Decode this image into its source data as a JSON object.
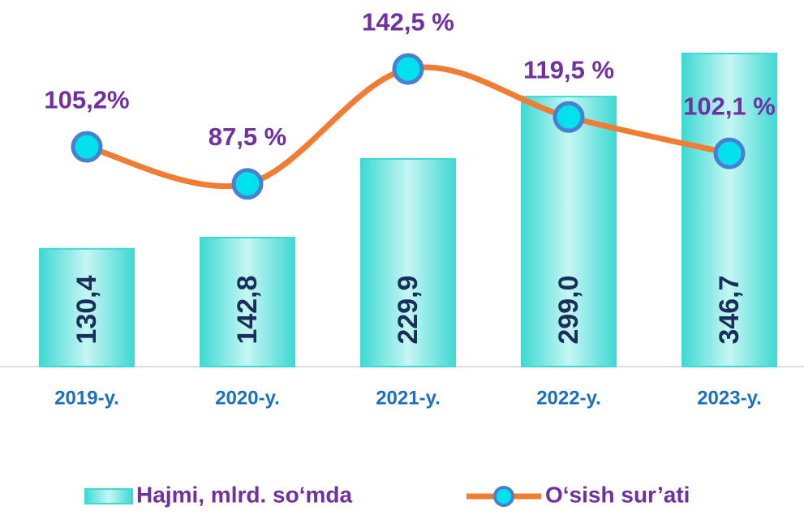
{
  "chart_data": {
    "type": "bar_line",
    "categories": [
      "2019-y.",
      "2020-y.",
      "2021-y.",
      "2022-y.",
      "2023-y."
    ],
    "series": [
      {
        "name": "Hajmi, mlrd. so‘mda",
        "type": "bar",
        "color": "#3fd9d4",
        "values": [
          130.4,
          142.8,
          229.9,
          299.0,
          346.7
        ],
        "value_labels": [
          "130,4",
          "142,8",
          "229,9",
          "299,0",
          "346,7"
        ]
      },
      {
        "name": "O‘sish sur’ati",
        "type": "line",
        "axis": "y2",
        "color": "#f07d32",
        "values": [
          105.2,
          87.5,
          142.5,
          119.5,
          102.1
        ],
        "value_labels": [
          "105,2%",
          "87,5 %",
          "142,5 %",
          "119,5 %",
          "102,1 %"
        ]
      }
    ],
    "ylim": [
      0,
      370
    ],
    "y2lim": [
      0,
      160
    ]
  }
}
